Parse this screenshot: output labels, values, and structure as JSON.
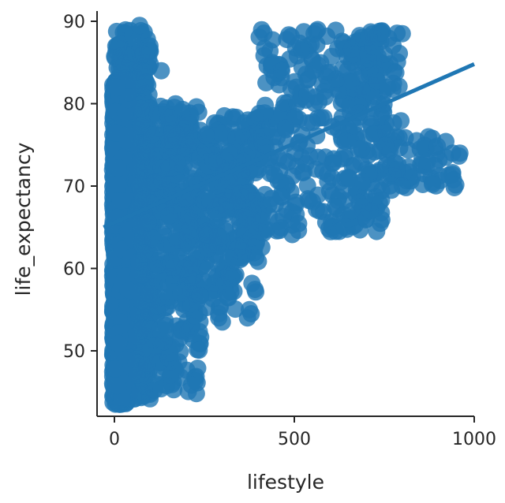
{
  "chart_data": {
    "type": "scatter",
    "title": "",
    "xlabel": "lifestyle",
    "ylabel": "life_expectancy",
    "xlim": [
      -30,
      1000
    ],
    "ylim": [
      42.5,
      91
    ],
    "xticks": [
      0,
      500,
      1000
    ],
    "yticks": [
      50,
      60,
      70,
      80,
      90
    ],
    "grid": false,
    "legend": "none",
    "point_color": "#1f77b4",
    "regression_line": {
      "x": [
        -30,
        1000
      ],
      "y": [
        65.0,
        84.8
      ]
    },
    "clusters": [
      {
        "x_range": [
          -5,
          40
        ],
        "y_range": [
          43.5,
          83
        ],
        "n": 1400
      },
      {
        "x_range": [
          0,
          100
        ],
        "y_range": [
          44,
          89
        ],
        "n": 650
      },
      {
        "x_range": [
          60,
          240
        ],
        "y_range": [
          44.5,
          80
        ],
        "n": 420
      },
      {
        "x_range": [
          150,
          400
        ],
        "y_range": [
          55,
          79
        ],
        "n": 260
      },
      {
        "x_range": [
          250,
          420
        ],
        "y_range": [
          61,
          77
        ],
        "n": 150
      },
      {
        "x_range": [
          400,
          750
        ],
        "y_range": [
          64,
          89
        ],
        "n": 330
      },
      {
        "x_range": [
          650,
          800
        ],
        "y_range": [
          70,
          89
        ],
        "n": 90
      },
      {
        "x_range": [
          750,
          960
        ],
        "y_range": [
          69.5,
          76
        ],
        "n": 45
      }
    ],
    "points": [
      [
        290,
        54.5
      ],
      [
        290,
        54
      ],
      [
        300,
        53.5
      ],
      [
        305,
        58
      ],
      [
        310,
        57
      ],
      [
        315,
        56.5
      ],
      [
        320,
        59
      ],
      [
        370,
        54
      ],
      [
        375,
        55
      ],
      [
        380,
        54.5
      ],
      [
        605,
        65
      ],
      [
        615,
        64.5
      ],
      [
        625,
        64.5
      ],
      [
        640,
        65
      ],
      [
        650,
        66
      ],
      [
        660,
        67
      ],
      [
        680,
        68
      ],
      [
        690,
        67.5
      ],
      [
        700,
        66
      ],
      [
        710,
        67
      ],
      [
        540,
        87
      ],
      [
        555,
        88.5
      ],
      [
        565,
        89
      ],
      [
        520,
        86.5
      ],
      [
        465,
        84
      ],
      [
        800,
        88.5
      ],
      [
        750,
        86
      ],
      [
        760,
        82
      ],
      [
        840,
        75.5
      ],
      [
        850,
        74.5
      ],
      [
        870,
        73
      ],
      [
        890,
        72.5
      ],
      [
        920,
        73.5
      ],
      [
        940,
        74
      ],
      [
        960,
        74
      ],
      [
        820,
        71
      ],
      [
        800,
        70
      ],
      [
        770,
        69.5
      ],
      [
        785,
        72
      ],
      [
        70,
        89.5
      ],
      [
        70,
        86.5
      ],
      [
        80,
        86
      ],
      [
        130,
        84
      ]
    ]
  }
}
